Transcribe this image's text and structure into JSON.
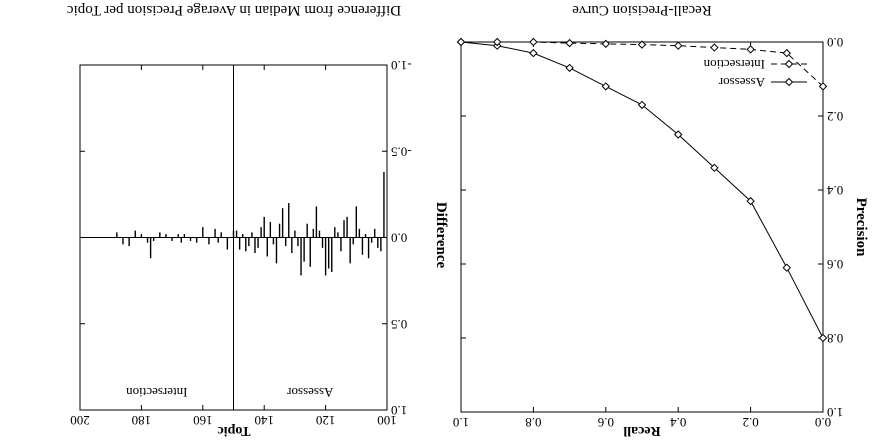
{
  "chart_data": [
    {
      "type": "line",
      "title": "Recall-Precision Curve",
      "xlabel": "Recall",
      "ylabel": "Precision",
      "xlim": [
        0.0,
        1.0
      ],
      "ylim": [
        0.0,
        1.0
      ],
      "x_ticks": [
        0.0,
        0.2,
        0.4,
        0.6,
        0.8,
        1.0
      ],
      "y_ticks": [
        0.0,
        0.2,
        0.4,
        0.6,
        0.8,
        1.0
      ],
      "x_tick_labels": [
        "0.0",
        "0.2",
        "0.4",
        "0.6",
        "0.8",
        "1.0"
      ],
      "y_tick_labels": [
        "0.0",
        "0.2",
        "0.4",
        "0.6",
        "0.8",
        "1.0"
      ],
      "grid": false,
      "legend_position": "bottom-left",
      "x": [
        0.0,
        0.1,
        0.2,
        0.3,
        0.4,
        0.5,
        0.6,
        0.7,
        0.8,
        0.9,
        1.0
      ],
      "series": [
        {
          "name": "Assessor",
          "line_style": "solid",
          "marker": "diamond",
          "values": [
            0.8,
            0.61,
            0.43,
            0.34,
            0.25,
            0.17,
            0.12,
            0.07,
            0.03,
            0.01,
            0.0
          ]
        },
        {
          "name": "Intersection",
          "line_style": "dashed",
          "marker": "diamond",
          "values": [
            0.12,
            0.03,
            0.02,
            0.015,
            0.01,
            0.007,
            0.005,
            0.003,
            0.0,
            0.0,
            0.0
          ]
        }
      ]
    },
    {
      "type": "bar",
      "title": "Difference from Median in Average Precision per Topic",
      "xlabel": "Topic",
      "ylabel": "Difference",
      "xlim": [
        100,
        200
      ],
      "ylim": [
        -1.0,
        1.0
      ],
      "x_ticks": [
        100,
        120,
        140,
        160,
        180,
        200
      ],
      "y_ticks": [
        -1.0,
        -0.5,
        0.0,
        0.5,
        1.0
      ],
      "x_tick_labels": [
        "100",
        "120",
        "140",
        "160",
        "180",
        "200"
      ],
      "y_tick_labels": [
        "-1.0",
        "-0.5",
        "0.0",
        "0.5",
        "1.0"
      ],
      "grid": false,
      "divider_topic": 150,
      "panel_labels": [
        "Assessor",
        "Intersection"
      ],
      "series": [
        {
          "name": "Assessor",
          "x": [
            101,
            102,
            103,
            104,
            105,
            106,
            107,
            108,
            109,
            110,
            111,
            112,
            113,
            114,
            115,
            116,
            117,
            118,
            119,
            120,
            121,
            122,
            123,
            124,
            125,
            126,
            127,
            128,
            129,
            130,
            131,
            132,
            133,
            134,
            135,
            136,
            137,
            138,
            139,
            140,
            141,
            142,
            143,
            144,
            145,
            146,
            147,
            148,
            149
          ],
          "values": [
            -0.38,
            0.08,
            0.06,
            -0.05,
            0.03,
            0.12,
            -0.02,
            0.1,
            -0.05,
            -0.18,
            0.04,
            0.15,
            -0.12,
            -0.1,
            0.08,
            -0.03,
            -0.06,
            0.2,
            0.18,
            0.22,
            0.06,
            -0.04,
            -0.18,
            -0.05,
            0.17,
            -0.08,
            0.14,
            0.22,
            0.05,
            -0.04,
            0.09,
            -0.2,
            0.05,
            -0.17,
            -0.08,
            0.15,
            0.04,
            -0.09,
            0.11,
            -0.12,
            -0.06,
            0.06,
            0.09,
            -0.03,
            0.05,
            0.08,
            -0.02,
            0.07,
            -0.04
          ]
        },
        {
          "name": "Intersection",
          "x": [
            150,
            152,
            154,
            155,
            156,
            158,
            160,
            162,
            164,
            166,
            167,
            168,
            170,
            172,
            174,
            176,
            177,
            178,
            180,
            182,
            184,
            186,
            188
          ],
          "values": [
            -0.04,
            0.07,
            -0.03,
            0.03,
            -0.05,
            0.04,
            -0.06,
            0.03,
            0.02,
            -0.02,
            0.03,
            -0.02,
            0.02,
            -0.02,
            -0.03,
            0.02,
            0.12,
            0.03,
            -0.02,
            -0.04,
            0.05,
            0.04,
            -0.03
          ]
        }
      ]
    }
  ]
}
